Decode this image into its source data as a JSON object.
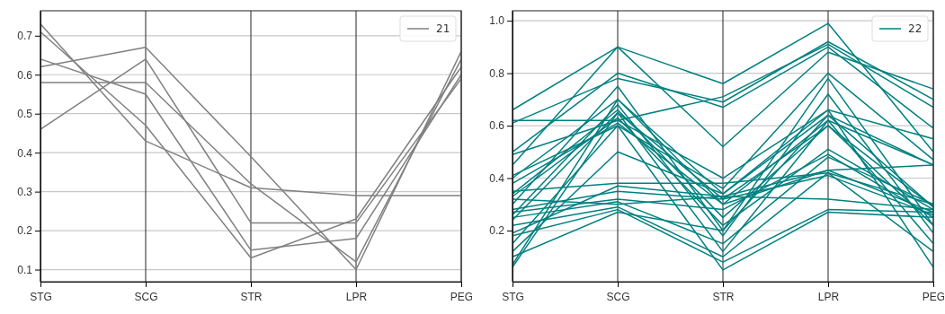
{
  "chart_data": [
    {
      "type": "line",
      "categories": [
        "STG",
        "SCG",
        "STR",
        "LPR",
        "PEG"
      ],
      "ylim": [
        0.069,
        0.764
      ],
      "yticks": [
        {
          "value": 0.1,
          "label": "0.1"
        },
        {
          "value": 0.2,
          "label": "0.2"
        },
        {
          "value": 0.3,
          "label": "0.3"
        },
        {
          "value": 0.4,
          "label": "0.4"
        },
        {
          "value": 0.5,
          "label": "0.5"
        },
        {
          "value": 0.6,
          "label": "0.6"
        },
        {
          "value": 0.7,
          "label": "0.7"
        }
      ],
      "grid": true,
      "legend": "top right",
      "series": [
        {
          "name": "21",
          "color": "#808080",
          "values": [
            0.73,
            0.43,
            0.31,
            0.29,
            0.29
          ]
        },
        {
          "color": "#808080",
          "values": [
            0.71,
            0.47,
            0.13,
            0.23,
            0.62
          ]
        },
        {
          "color": "#808080",
          "values": [
            0.64,
            0.55,
            0.15,
            0.18,
            0.6
          ]
        },
        {
          "color": "#808080",
          "values": [
            0.62,
            0.67,
            0.39,
            0.1,
            0.66
          ]
        },
        {
          "color": "#808080",
          "values": [
            0.58,
            0.58,
            0.32,
            0.12,
            0.64
          ]
        },
        {
          "color": "#808080",
          "values": [
            0.46,
            0.64,
            0.22,
            0.22,
            0.59
          ]
        }
      ]
    },
    {
      "type": "line",
      "categories": [
        "STG",
        "SCG",
        "STR",
        "LPR",
        "PEG"
      ],
      "ylim": [
        0.005,
        1.038
      ],
      "yticks": [
        {
          "value": 0.2,
          "label": "0.2"
        },
        {
          "value": 0.4,
          "label": "0.4"
        },
        {
          "value": 0.6,
          "label": "0.6"
        },
        {
          "value": 0.8,
          "label": "0.8"
        },
        {
          "value": 1.0,
          "label": "1.0"
        }
      ],
      "grid": true,
      "legend": "top right",
      "series": [
        {
          "name": "22",
          "color": "#008080",
          "values": [
            0.66,
            0.9,
            0.52,
            0.88,
            0.74
          ]
        },
        {
          "color": "#008080",
          "values": [
            0.62,
            0.62,
            0.71,
            0.91,
            0.67
          ]
        },
        {
          "color": "#008080",
          "values": [
            0.61,
            0.78,
            0.69,
            0.92,
            0.7
          ]
        },
        {
          "color": "#008080",
          "values": [
            0.5,
            0.8,
            0.67,
            0.9,
            0.59
          ]
        },
        {
          "color": "#008080",
          "values": [
            0.49,
            0.62,
            0.4,
            0.66,
            0.55
          ]
        },
        {
          "color": "#008080",
          "values": [
            0.45,
            0.9,
            0.76,
            0.99,
            0.5
          ]
        },
        {
          "color": "#008080",
          "values": [
            0.41,
            0.6,
            0.36,
            0.8,
            0.47
          ]
        },
        {
          "color": "#008080",
          "values": [
            0.4,
            0.7,
            0.34,
            0.64,
            0.45
          ]
        },
        {
          "color": "#008080",
          "values": [
            0.38,
            0.61,
            0.3,
            0.62,
            0.45
          ]
        },
        {
          "color": "#008080",
          "values": [
            0.35,
            0.38,
            0.38,
            0.42,
            0.3
          ]
        },
        {
          "color": "#008080",
          "values": [
            0.34,
            0.66,
            0.25,
            0.6,
            0.29
          ]
        },
        {
          "color": "#008080",
          "values": [
            0.33,
            0.63,
            0.22,
            0.51,
            0.28
          ]
        },
        {
          "color": "#008080",
          "values": [
            0.32,
            0.3,
            0.33,
            0.43,
            0.27
          ]
        },
        {
          "color": "#008080",
          "values": [
            0.3,
            0.75,
            0.2,
            0.78,
            0.22
          ]
        },
        {
          "color": "#008080",
          "values": [
            0.28,
            0.35,
            0.32,
            0.41,
            0.26
          ]
        },
        {
          "color": "#008080",
          "values": [
            0.27,
            0.32,
            0.28,
            0.49,
            0.25
          ]
        },
        {
          "color": "#008080",
          "values": [
            0.26,
            0.68,
            0.18,
            0.72,
            0.19
          ]
        },
        {
          "color": "#008080",
          "values": [
            0.25,
            0.31,
            0.15,
            0.48,
            0.3
          ]
        },
        {
          "color": "#008080",
          "values": [
            0.24,
            0.65,
            0.12,
            0.62,
            0.15
          ]
        },
        {
          "color": "#008080",
          "values": [
            0.22,
            0.29,
            0.1,
            0.42,
            0.12
          ]
        },
        {
          "color": "#008080",
          "values": [
            0.19,
            0.37,
            0.33,
            0.32,
            0.28
          ]
        },
        {
          "color": "#008080",
          "values": [
            0.18,
            0.28,
            0.08,
            0.28,
            0.27
          ]
        },
        {
          "color": "#008080",
          "values": [
            0.15,
            0.6,
            0.05,
            0.27,
            0.25
          ]
        },
        {
          "color": "#008080",
          "values": [
            0.12,
            0.5,
            0.34,
            0.66,
            0.06
          ]
        },
        {
          "color": "#008080",
          "values": [
            0.1,
            0.27,
            0.2,
            0.64,
            0.29
          ]
        },
        {
          "color": "#008080",
          "values": [
            0.07,
            0.7,
            0.3,
            0.43,
            0.45
          ]
        },
        {
          "color": "#008080",
          "values": [
            0.06,
            0.65,
            0.32,
            0.6,
            0.22
          ]
        }
      ]
    }
  ]
}
